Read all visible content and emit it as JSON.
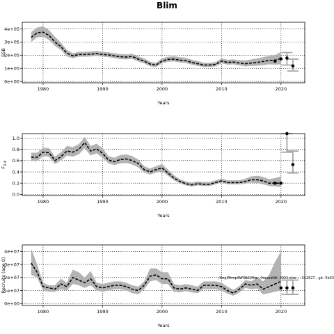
{
  "figure_title": "Blim",
  "footnote": "/tmp/Rtmp3Wl9bG/file.../hovedtitt_2021.xlsx ... 112627 , git: 5b33",
  "colors": {
    "band": "#b3b3b3",
    "line": "#000000",
    "forecast_bar": "#a6a6a6"
  },
  "chart_data": [
    {
      "type": "line",
      "title": "",
      "xlabel": "Years",
      "ylabel": "SSB",
      "xlim": [
        1976.5,
        2024
      ],
      "ylim": [
        -10000,
        450000
      ],
      "x_ticks": [
        1980,
        1990,
        2000,
        2010,
        2020
      ],
      "y_ticks": [
        0,
        100000,
        200000,
        300000,
        400000
      ],
      "y_tick_labels": [
        "0e+00",
        "1e+05",
        "2e+05",
        "3e+05",
        "4e+05"
      ],
      "grid": true,
      "years": [
        1978,
        1979,
        1980,
        1981,
        1982,
        1983,
        1984,
        1985,
        1986,
        1987,
        1988,
        1989,
        1990,
        1991,
        1992,
        1993,
        1994,
        1995,
        1996,
        1997,
        1998,
        1999,
        2000,
        2001,
        2002,
        2003,
        2004,
        2005,
        2006,
        2007,
        2008,
        2009,
        2010,
        2011,
        2012,
        2013,
        2014,
        2015,
        2016,
        2017,
        2018,
        2019,
        2020
      ],
      "median": [
        335000,
        370000,
        375000,
        350000,
        300000,
        265000,
        215000,
        195000,
        205000,
        205000,
        208000,
        212000,
        205000,
        202000,
        195000,
        188000,
        186000,
        190000,
        170000,
        155000,
        132000,
        125000,
        155000,
        168000,
        170000,
        162000,
        158000,
        145000,
        135000,
        125000,
        125000,
        130000,
        155000,
        145000,
        148000,
        140000,
        135000,
        140000,
        145000,
        152000,
        160000,
        162000,
        175000
      ],
      "lower": [
        300000,
        335000,
        340000,
        315000,
        270000,
        240000,
        190000,
        178000,
        188000,
        188000,
        190000,
        195000,
        188000,
        185000,
        178000,
        170000,
        168000,
        172000,
        152000,
        138000,
        115000,
        110000,
        138000,
        150000,
        152000,
        145000,
        140000,
        128000,
        118000,
        110000,
        110000,
        115000,
        138000,
        128000,
        130000,
        122000,
        115000,
        118000,
        120000,
        125000,
        130000,
        128000,
        130000
      ],
      "upper": [
        375000,
        410000,
        420000,
        390000,
        340000,
        295000,
        240000,
        215000,
        225000,
        225000,
        228000,
        232000,
        225000,
        222000,
        215000,
        208000,
        206000,
        210000,
        190000,
        175000,
        150000,
        142000,
        175000,
        188000,
        192000,
        185000,
        180000,
        165000,
        155000,
        142000,
        142000,
        148000,
        175000,
        165000,
        168000,
        162000,
        160000,
        168000,
        175000,
        185000,
        195000,
        200000,
        225000
      ],
      "points": [
        {
          "x": 2019,
          "y": 155000
        },
        {
          "x": 2020,
          "y": 172000
        },
        {
          "x": 2021,
          "y": 178000
        },
        {
          "x": 2022,
          "y": 118000
        }
      ],
      "forecast_bars": [
        {
          "x": 2021,
          "lo": 125000,
          "hi": 220000
        },
        {
          "x": 2022,
          "lo": 80000,
          "hi": 170000
        }
      ]
    },
    {
      "type": "line",
      "title": "",
      "xlabel": "Years",
      "ylabel": "F2-6",
      "ylabel_main": "F",
      "ylabel_sub": "2-6",
      "xlim": [
        1976.5,
        2024
      ],
      "ylim": [
        -0.02,
        1.08
      ],
      "x_ticks": [
        1980,
        1990,
        2000,
        2010,
        2020
      ],
      "y_ticks": [
        0,
        0.2,
        0.4,
        0.6,
        0.8,
        1.0
      ],
      "y_tick_labels": [
        "0.0",
        "0.2",
        "0.4",
        "0.6",
        "0.8",
        "1.0"
      ],
      "grid": true,
      "years": [
        1978,
        1979,
        1980,
        1981,
        1982,
        1983,
        1984,
        1985,
        1986,
        1987,
        1988,
        1989,
        1990,
        1991,
        1992,
        1993,
        1994,
        1995,
        1996,
        1997,
        1998,
        1999,
        2000,
        2001,
        2002,
        2003,
        2004,
        2005,
        2006,
        2007,
        2008,
        2009,
        2010,
        2011,
        2012,
        2013,
        2014,
        2015,
        2016,
        2017,
        2018,
        2019,
        2020
      ],
      "median": [
        0.66,
        0.66,
        0.75,
        0.74,
        0.6,
        0.67,
        0.77,
        0.75,
        0.8,
        0.92,
        0.77,
        0.81,
        0.73,
        0.61,
        0.58,
        0.62,
        0.63,
        0.6,
        0.55,
        0.44,
        0.4,
        0.44,
        0.47,
        0.38,
        0.29,
        0.23,
        0.19,
        0.17,
        0.19,
        0.18,
        0.18,
        0.21,
        0.24,
        0.21,
        0.21,
        0.21,
        0.23,
        0.26,
        0.26,
        0.24,
        0.2,
        0.2,
        0.2
      ],
      "lower": [
        0.6,
        0.59,
        0.68,
        0.67,
        0.54,
        0.6,
        0.69,
        0.67,
        0.71,
        0.82,
        0.69,
        0.73,
        0.65,
        0.55,
        0.52,
        0.55,
        0.56,
        0.53,
        0.48,
        0.39,
        0.35,
        0.39,
        0.41,
        0.33,
        0.25,
        0.2,
        0.16,
        0.14,
        0.16,
        0.15,
        0.15,
        0.18,
        0.21,
        0.18,
        0.18,
        0.18,
        0.19,
        0.21,
        0.2,
        0.18,
        0.15,
        0.14,
        0.13
      ],
      "upper": [
        0.74,
        0.74,
        0.83,
        0.82,
        0.67,
        0.75,
        0.86,
        0.84,
        0.89,
        1.02,
        0.86,
        0.9,
        0.82,
        0.68,
        0.65,
        0.7,
        0.71,
        0.68,
        0.62,
        0.5,
        0.46,
        0.5,
        0.54,
        0.44,
        0.34,
        0.27,
        0.23,
        0.21,
        0.23,
        0.22,
        0.22,
        0.25,
        0.28,
        0.25,
        0.25,
        0.25,
        0.28,
        0.32,
        0.33,
        0.31,
        0.27,
        0.29,
        0.32
      ],
      "points": [
        {
          "x": 2019,
          "y": 0.2
        },
        {
          "x": 2020,
          "y": 0.2
        },
        {
          "x": 2021,
          "y": 1.08
        },
        {
          "x": 2022,
          "y": 0.53
        }
      ],
      "forecast_bars": [
        {
          "x": 2021,
          "lo": 0.75,
          "hi": 1.08
        },
        {
          "x": 2022,
          "lo": 0.38,
          "hi": 0.77
        }
      ]
    },
    {
      "type": "line",
      "title": "",
      "xlabel": "Years",
      "ylabel": "Recruits (age 0)",
      "xlim": [
        1976.5,
        2024
      ],
      "ylim": [
        -1500000,
        45000000
      ],
      "x_ticks": [
        1980,
        1990,
        2000,
        2010,
        2020
      ],
      "y_ticks": [
        0,
        10000000,
        20000000,
        30000000,
        40000000
      ],
      "y_tick_labels": [
        "0e+00",
        "1e+07",
        "2e+07",
        "3e+07",
        "4e+07"
      ],
      "grid": true,
      "years": [
        1978,
        1979,
        1980,
        1981,
        1982,
        1983,
        1984,
        1985,
        1986,
        1987,
        1988,
        1989,
        1990,
        1991,
        1992,
        1993,
        1994,
        1995,
        1996,
        1997,
        1998,
        1999,
        2000,
        2001,
        2002,
        2003,
        2004,
        2005,
        2006,
        2007,
        2008,
        2009,
        2010,
        2011,
        2012,
        2013,
        2014,
        2015,
        2016,
        2017,
        2018,
        2019,
        2020
      ],
      "median": [
        31000000,
        24000000,
        13000000,
        12000000,
        11000000,
        15000000,
        13000000,
        20000000,
        18000000,
        16000000,
        19000000,
        13000000,
        12000000,
        13000000,
        14000000,
        14000000,
        13000000,
        11000000,
        10000000,
        14000000,
        21000000,
        22000000,
        19000000,
        19000000,
        12000000,
        11000000,
        12000000,
        11000000,
        10000000,
        14000000,
        14000000,
        14000000,
        13000000,
        10000000,
        8000000,
        11000000,
        15000000,
        14000000,
        15000000,
        11000000,
        13000000,
        15000000,
        17000000
      ],
      "lower": [
        22000000,
        20000000,
        10000000,
        9000000,
        9000000,
        11000000,
        10000000,
        15000000,
        14000000,
        12000000,
        14000000,
        10000000,
        9000000,
        10000000,
        11000000,
        11000000,
        10000000,
        8000000,
        7000000,
        11000000,
        17000000,
        18000000,
        15000000,
        15000000,
        9000000,
        8500000,
        9500000,
        8500000,
        8000000,
        11000000,
        11000000,
        11000000,
        10000000,
        7500000,
        6000000,
        8500000,
        12000000,
        11000000,
        11500000,
        7000000,
        8000000,
        9000000,
        10000000
      ],
      "upper": [
        42000000,
        30000000,
        16000000,
        14000000,
        14000000,
        19000000,
        16000000,
        26000000,
        24000000,
        20000000,
        25000000,
        16000000,
        15000000,
        16000000,
        17000000,
        17000000,
        16000000,
        14000000,
        13000000,
        17000000,
        27000000,
        27000000,
        24000000,
        24000000,
        15000000,
        14000000,
        15000000,
        14000000,
        13000000,
        17000000,
        17000000,
        17000000,
        16000000,
        13000000,
        10500000,
        13500000,
        18000000,
        17000000,
        20000000,
        17000000,
        22000000,
        32000000,
        40000000
      ],
      "points": [
        {
          "x": 2020,
          "y": 12000000
        },
        {
          "x": 2021,
          "y": 12000000
        },
        {
          "x": 2022,
          "y": 12000000
        }
      ],
      "forecast_bars": [
        {
          "x": 2021,
          "lo": 7000000,
          "hi": 18000000
        },
        {
          "x": 2022,
          "lo": 7000000,
          "hi": 18000000
        }
      ]
    }
  ]
}
